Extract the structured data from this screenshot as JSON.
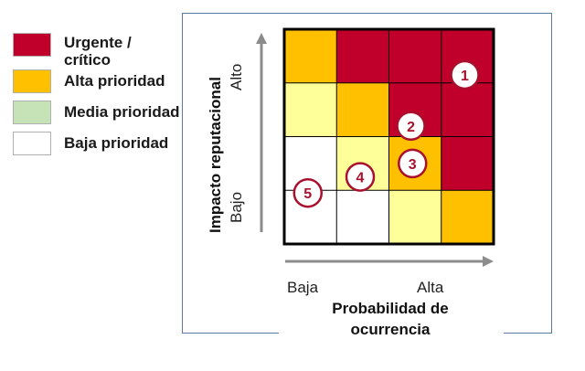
{
  "legend": [
    {
      "label": "Urgente / crítico",
      "color": "#c0002a"
    },
    {
      "label": "Alta prioridad",
      "color": "#ffc000"
    },
    {
      "label": "Media prioridad",
      "color": "#c6e3b8"
    },
    {
      "label": "Baja prioridad",
      "color": "#ffffff"
    }
  ],
  "y_axis": {
    "title": "Impacto reputacional",
    "high": "Alto",
    "low": "Bajo"
  },
  "x_axis": {
    "title": "Probabilidad de ocurrencia",
    "title_lines": [
      "Probabilidad de",
      "ocurrencia"
    ],
    "low": "Baja",
    "high": "Alta"
  },
  "matrix": {
    "colors": {
      "red": "#c0002a",
      "orange": "#ffc000",
      "yellow": "#ffff99",
      "white": "#ffffff"
    },
    "rows": [
      [
        "orange",
        "red",
        "red",
        "red"
      ],
      [
        "yellow",
        "orange",
        "red",
        "red"
      ],
      [
        "white",
        "yellow",
        "orange",
        "red"
      ],
      [
        "white",
        "white",
        "yellow",
        "orange"
      ]
    ]
  },
  "risks": [
    {
      "label": "1",
      "col": 3.45,
      "row": 0.85
    },
    {
      "label": "2",
      "col": 2.42,
      "row": 1.8
    },
    {
      "label": "3",
      "col": 2.45,
      "row": 2.5
    },
    {
      "label": "4",
      "col": 1.45,
      "row": 2.75
    },
    {
      "label": "5",
      "col": 0.45,
      "row": 3.05
    }
  ],
  "accent": {
    "marker": "#a8102e",
    "axis_arrow": "#8c8c8c"
  }
}
